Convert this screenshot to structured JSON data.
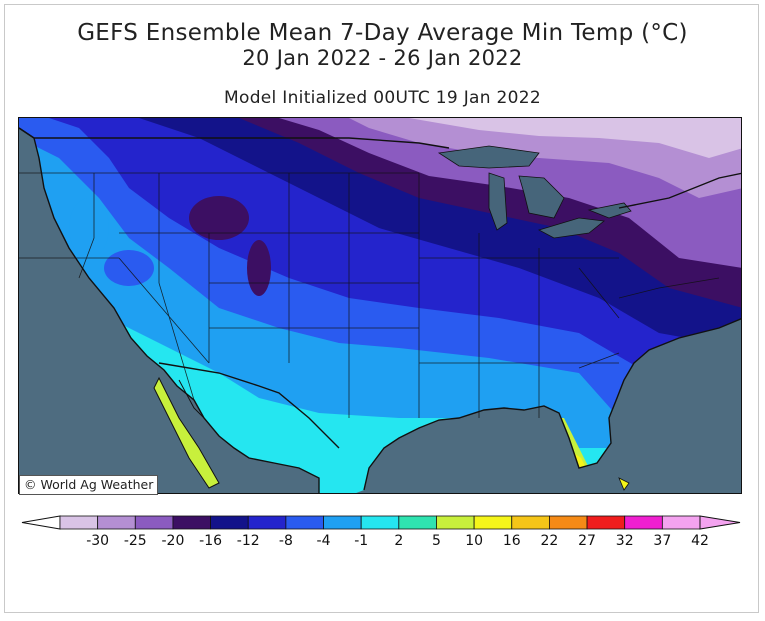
{
  "titles": {
    "line1": "GEFS Ensemble Mean 7-Day Average Min Temp (°C)",
    "line2": "20 Jan 2022 - 26 Jan 2022",
    "line3": "Model Initialized 00UTC 19 Jan 2022"
  },
  "credit": "© World Ag Weather",
  "legend": {
    "ticks": [
      "-30",
      "-25",
      "-20",
      "-16",
      "-12",
      "-8",
      "-4",
      "-1",
      "2",
      "5",
      "10",
      "16",
      "22",
      "27",
      "32",
      "37",
      "42"
    ],
    "colors": [
      "#d9c3e6",
      "#b48fd3",
      "#8b5bc0",
      "#3c0f63",
      "#13138a",
      "#2424cc",
      "#2a5bf0",
      "#1fa0f2",
      "#25e6f0",
      "#2fe3b0",
      "#c8f03c",
      "#f5f51a",
      "#f5c518",
      "#f58a16",
      "#f01d1d",
      "#f01fd0",
      "#f4a3f0"
    ],
    "low_end_color": "#ffffff",
    "high_end_color": "#f4a3f0"
  },
  "colors": {
    "ocean": "#4e6c80",
    "lakes": "#46657a",
    "border": "#111111"
  }
}
